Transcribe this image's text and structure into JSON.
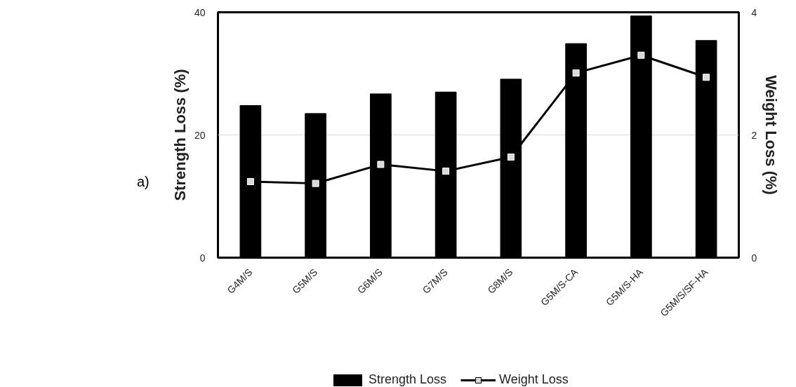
{
  "chart_data": {
    "type": "bar",
    "ylabel": "Strength Loss (%)",
    "y2label": "Weight Loss (%)",
    "categories": [
      "G4M/S",
      "G5M/S",
      "G6M/S",
      "G7M/S",
      "G8M/S",
      "G5M/S-CA",
      "G5M/S-HA",
      "G5M/S/SF-HA"
    ],
    "series": [
      {
        "name": "Strength Loss",
        "color": "#000000",
        "values": [
          24.8,
          23.5,
          26.7,
          27.0,
          29.1,
          34.9,
          39.4,
          35.4
        ]
      },
      {
        "name": "Weight Loss",
        "type": "line",
        "axis": "y2",
        "color": "#000000",
        "marker": "square",
        "values": [
          1.24,
          1.21,
          1.52,
          1.41,
          1.64,
          3.01,
          3.3,
          2.94
        ]
      }
    ],
    "ylim": [
      0,
      40
    ],
    "yticks": [
      0,
      20,
      40
    ],
    "y2lim": [
      0,
      4
    ],
    "y2ticks": [
      0,
      2,
      4
    ],
    "grid": "y",
    "legend": "bottom",
    "annotations": [
      "a)"
    ]
  }
}
